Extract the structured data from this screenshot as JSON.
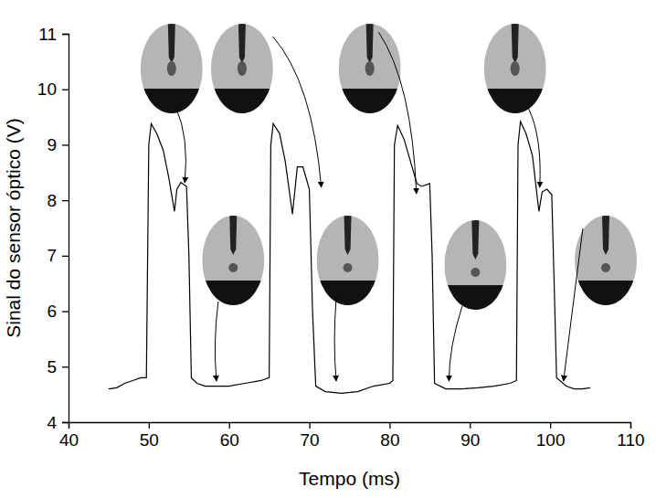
{
  "chart_data": {
    "type": "line",
    "x_label": "Tempo (ms)",
    "y_label": "Sinal do sensor óptico (V)",
    "color": "#000000",
    "x": [
      45,
      46,
      47,
      48,
      49,
      49.7,
      50,
      50.3,
      51,
      51.8,
      52.5,
      53.2,
      53.5,
      54,
      54.7,
      55,
      55.3,
      56,
      57,
      58,
      60,
      62,
      64,
      65,
      65.2,
      65.5,
      66.3,
      67,
      67.9,
      68.5,
      69.2,
      70,
      70.4,
      70.8,
      72,
      74,
      76,
      78,
      80,
      80.4,
      80.6,
      81,
      81.8,
      82.6,
      83.4,
      84,
      85,
      85.3,
      85.6,
      87,
      89,
      91,
      93,
      95,
      95.8,
      96,
      96.3,
      97,
      97.8,
      98.6,
      99,
      99.6,
      100.2,
      100.5,
      100.8,
      102,
      103,
      104,
      105
    ],
    "values": [
      4.6,
      4.62,
      4.7,
      4.75,
      4.8,
      4.8,
      9.0,
      9.38,
      9.2,
      8.9,
      8.4,
      7.8,
      8.2,
      8.32,
      8.25,
      7.0,
      4.8,
      4.7,
      4.65,
      4.65,
      4.65,
      4.7,
      4.75,
      4.8,
      9.0,
      9.38,
      9.2,
      8.7,
      7.75,
      8.6,
      8.6,
      8.2,
      6.0,
      4.65,
      4.55,
      4.52,
      4.55,
      4.65,
      4.7,
      4.75,
      9.0,
      9.35,
      9.1,
      8.7,
      8.3,
      8.25,
      8.3,
      7.0,
      4.7,
      4.6,
      4.6,
      4.62,
      4.65,
      4.7,
      4.75,
      9.0,
      9.42,
      9.2,
      8.8,
      7.8,
      8.15,
      8.2,
      8.1,
      6.5,
      4.8,
      4.65,
      4.6,
      4.6,
      4.62
    ],
    "xlim": [
      40,
      110
    ],
    "xticks": [
      40,
      50,
      60,
      70,
      80,
      90,
      100,
      110
    ],
    "ylim": [
      4,
      11
    ],
    "yticks": [
      4,
      5,
      6,
      7,
      8,
      9,
      10,
      11
    ],
    "grid": false
  }
}
